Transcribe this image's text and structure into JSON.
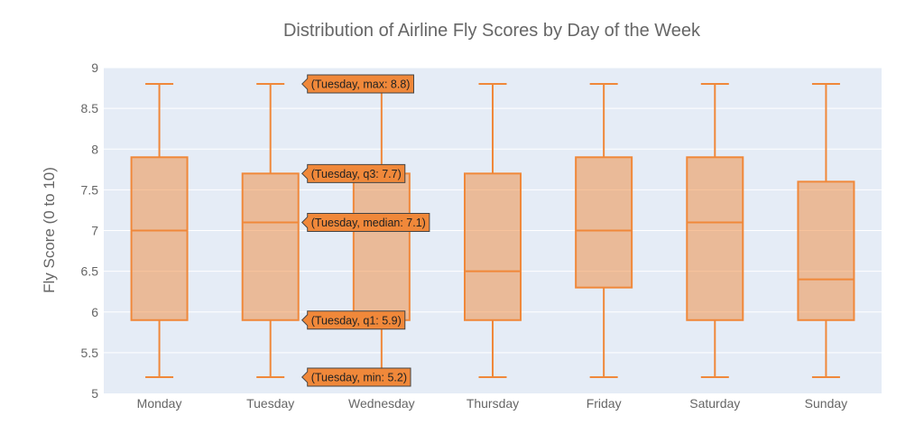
{
  "chart_data": {
    "type": "box",
    "title": "Distribution of Airline Fly Scores by Day of the Week",
    "xlabel": "",
    "ylabel": "Fly Score (0 to 10)",
    "ylim": [
      5,
      9
    ],
    "yticks": [
      "5",
      "5.5",
      "6",
      "6.5",
      "7",
      "7.5",
      "8",
      "8.5",
      "9"
    ],
    "grid": true,
    "color": "#f0883a",
    "background": "#e5ecf6",
    "categories": [
      "Monday",
      "Tuesday",
      "Wednesday",
      "Thursday",
      "Friday",
      "Saturday",
      "Sunday"
    ],
    "boxes": [
      {
        "min": 5.2,
        "q1": 5.9,
        "median": 7.0,
        "q3": 7.9,
        "max": 8.8
      },
      {
        "min": 5.2,
        "q1": 5.9,
        "median": 7.1,
        "q3": 7.7,
        "max": 8.8
      },
      {
        "min": 5.2,
        "q1": 5.9,
        "median": 7.1,
        "q3": 7.7,
        "max": 8.8
      },
      {
        "min": 5.2,
        "q1": 5.9,
        "median": 6.5,
        "q3": 7.7,
        "max": 8.8
      },
      {
        "min": 5.2,
        "q1": 6.3,
        "median": 7.0,
        "q3": 7.9,
        "max": 8.8
      },
      {
        "min": 5.2,
        "q1": 5.9,
        "median": 7.1,
        "q3": 7.9,
        "max": 8.8
      },
      {
        "min": 5.2,
        "q1": 5.9,
        "median": 6.4,
        "q3": 7.6,
        "max": 8.8
      }
    ],
    "hover": {
      "category_index": 1,
      "labels": [
        {
          "stat": "max",
          "value": 8.8,
          "text": "(Tuesday, max: 8.8)"
        },
        {
          "stat": "q3",
          "value": 7.7,
          "text": "(Tuesday, q3: 7.7)"
        },
        {
          "stat": "median",
          "value": 7.1,
          "text": "(Tuesday, median: 7.1)"
        },
        {
          "stat": "q1",
          "value": 5.9,
          "text": "(Tuesday, q1: 5.9)"
        },
        {
          "stat": "min",
          "value": 5.2,
          "text": "(Tuesday, min: 5.2)"
        }
      ]
    }
  }
}
